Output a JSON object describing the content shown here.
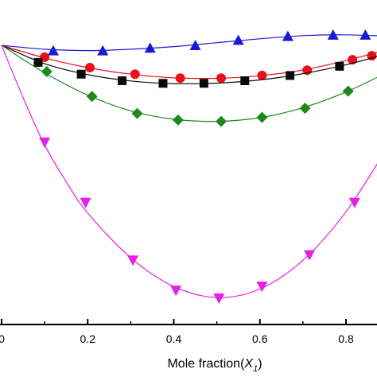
{
  "chart_data": {
    "type": "line",
    "xlabel_main": "Mole fraction(",
    "xlabel_var": "X",
    "xlabel_sub": "1",
    "xlabel_close": ")",
    "xlim": [
      0,
      0.9
    ],
    "ylim": [
      -1.0,
      0.05
    ],
    "xticks": [
      {
        "value": 0,
        "label": "0"
      },
      {
        "value": 0.2,
        "label": "0.2"
      },
      {
        "value": 0.4,
        "label": "0.4"
      },
      {
        "value": 0.6,
        "label": "0.6"
      },
      {
        "value": 0.8,
        "label": "0.8"
      }
    ],
    "series": [
      {
        "marker": "triangle-up",
        "color": "#1a1ad6",
        "line_color": "#1a1ad6",
        "points": [
          [
            0.12,
            -0.02
          ],
          [
            0.235,
            -0.02
          ],
          [
            0.345,
            -0.01
          ],
          [
            0.45,
            0.0
          ],
          [
            0.55,
            0.02
          ],
          [
            0.665,
            0.035
          ],
          [
            0.77,
            0.04
          ],
          [
            0.845,
            0.04
          ]
        ],
        "curve": [
          [
            0.0,
            0.0
          ],
          [
            0.1,
            -0.015
          ],
          [
            0.2,
            -0.02
          ],
          [
            0.3,
            -0.015
          ],
          [
            0.4,
            -0.005
          ],
          [
            0.5,
            0.01
          ],
          [
            0.6,
            0.025
          ],
          [
            0.7,
            0.037
          ],
          [
            0.8,
            0.04
          ],
          [
            0.9,
            0.035
          ]
        ]
      },
      {
        "marker": "circle",
        "color": "#e8101a",
        "line_color": "#e8101a",
        "points": [
          [
            0.1,
            -0.045
          ],
          [
            0.205,
            -0.085
          ],
          [
            0.31,
            -0.11
          ],
          [
            0.415,
            -0.125
          ],
          [
            0.51,
            -0.125
          ],
          [
            0.605,
            -0.115
          ],
          [
            0.71,
            -0.095
          ],
          [
            0.815,
            -0.055
          ],
          [
            0.86,
            -0.04
          ]
        ],
        "curve": [
          [
            0.0,
            0.0
          ],
          [
            0.1,
            -0.048
          ],
          [
            0.2,
            -0.085
          ],
          [
            0.3,
            -0.11
          ],
          [
            0.4,
            -0.124
          ],
          [
            0.5,
            -0.126
          ],
          [
            0.6,
            -0.116
          ],
          [
            0.7,
            -0.094
          ],
          [
            0.8,
            -0.058
          ],
          [
            0.9,
            -0.015
          ]
        ]
      },
      {
        "marker": "square",
        "color": "#0a0a0a",
        "line_color": "#0a0a0a",
        "points": [
          [
            0.085,
            -0.065
          ],
          [
            0.185,
            -0.11
          ],
          [
            0.28,
            -0.135
          ],
          [
            0.375,
            -0.145
          ],
          [
            0.47,
            -0.145
          ],
          [
            0.565,
            -0.135
          ],
          [
            0.67,
            -0.115
          ],
          [
            0.785,
            -0.08
          ]
        ],
        "curve": [
          [
            0.0,
            0.0
          ],
          [
            0.1,
            -0.07
          ],
          [
            0.2,
            -0.112
          ],
          [
            0.3,
            -0.136
          ],
          [
            0.4,
            -0.146
          ],
          [
            0.5,
            -0.144
          ],
          [
            0.6,
            -0.132
          ],
          [
            0.7,
            -0.108
          ],
          [
            0.8,
            -0.074
          ],
          [
            0.9,
            -0.03
          ]
        ]
      },
      {
        "marker": "diamond",
        "color": "#1e8a1e",
        "line_color": "#1e8a1e",
        "points": [
          [
            0.105,
            -0.1
          ],
          [
            0.21,
            -0.195
          ],
          [
            0.315,
            -0.26
          ],
          [
            0.41,
            -0.285
          ],
          [
            0.51,
            -0.29
          ],
          [
            0.605,
            -0.275
          ],
          [
            0.705,
            -0.24
          ],
          [
            0.805,
            -0.175
          ]
        ],
        "curve": [
          [
            0.0,
            0.0
          ],
          [
            0.1,
            -0.105
          ],
          [
            0.2,
            -0.19
          ],
          [
            0.3,
            -0.25
          ],
          [
            0.4,
            -0.282
          ],
          [
            0.5,
            -0.29
          ],
          [
            0.6,
            -0.276
          ],
          [
            0.7,
            -0.238
          ],
          [
            0.8,
            -0.178
          ],
          [
            0.9,
            -0.1
          ]
        ]
      },
      {
        "marker": "triangle-down",
        "color": "#e61ee6",
        "line_color": "#e61ee6",
        "points": [
          [
            0.1,
            -0.37
          ],
          [
            0.195,
            -0.6
          ],
          [
            0.305,
            -0.82
          ],
          [
            0.405,
            -0.935
          ],
          [
            0.505,
            -0.965
          ],
          [
            0.605,
            -0.92
          ],
          [
            0.715,
            -0.8
          ],
          [
            0.82,
            -0.6
          ]
        ],
        "curve": [
          [
            0.0,
            0.0
          ],
          [
            0.05,
            -0.2
          ],
          [
            0.1,
            -0.38
          ],
          [
            0.15,
            -0.52
          ],
          [
            0.2,
            -0.64
          ],
          [
            0.3,
            -0.81
          ],
          [
            0.4,
            -0.92
          ],
          [
            0.5,
            -0.962
          ],
          [
            0.6,
            -0.93
          ],
          [
            0.7,
            -0.82
          ],
          [
            0.8,
            -0.635
          ],
          [
            0.9,
            -0.38
          ]
        ]
      }
    ]
  }
}
